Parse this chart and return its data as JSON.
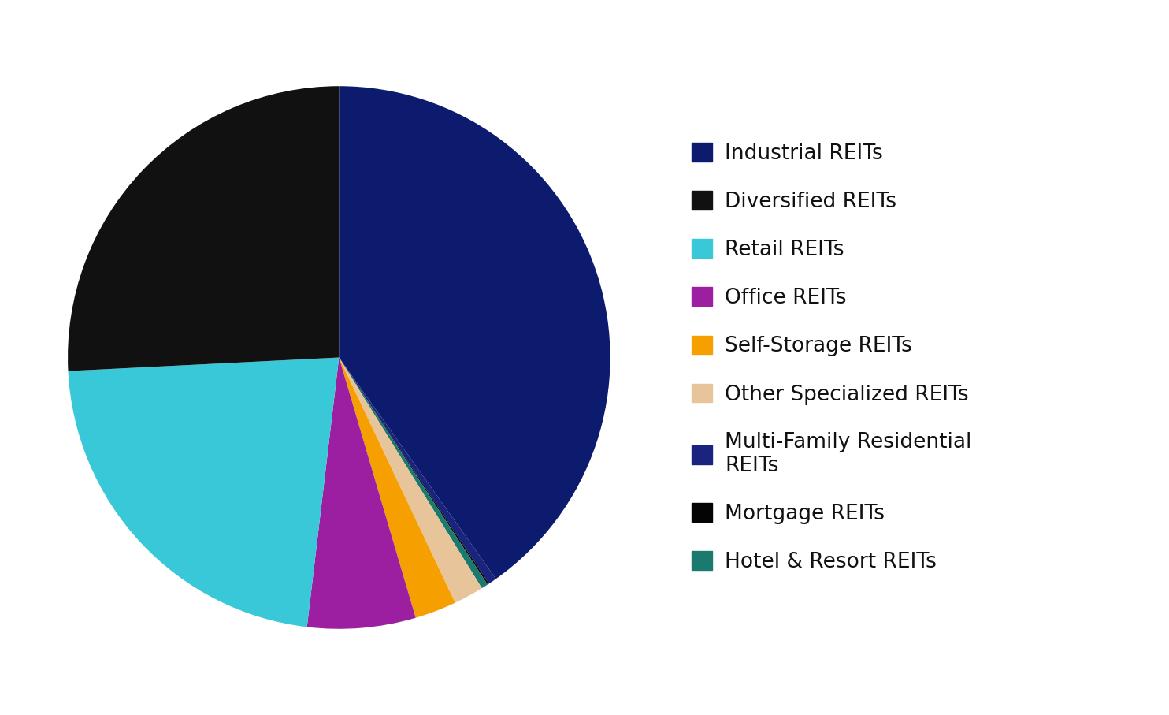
{
  "legend_labels": [
    "Industrial REITs",
    "Diversified REITs",
    "Retail REITs",
    "Office REITs",
    "Self-Storage REITs",
    "Other Specialized REITs",
    "Multi-Family Residential\nREITs",
    "Mortgage REITs",
    "Hotel & Resort REITs"
  ],
  "values": [
    40.5,
    26.0,
    22.5,
    6.5,
    2.5,
    1.8,
    0.5,
    0.1,
    0.4
  ],
  "colors": [
    "#0D1B6E",
    "#111111",
    "#38C8D8",
    "#9B1FA0",
    "#F5A000",
    "#E8C49A",
    "#1A237E",
    "#040404",
    "#1B7A6E"
  ],
  "pie_order": [
    0,
    6,
    7,
    8,
    5,
    4,
    3,
    2,
    1
  ],
  "startangle": 90,
  "background_color": "#FFFFFF",
  "figsize": [
    14.84,
    9.07
  ],
  "dpi": 100,
  "legend_fontsize": 19
}
